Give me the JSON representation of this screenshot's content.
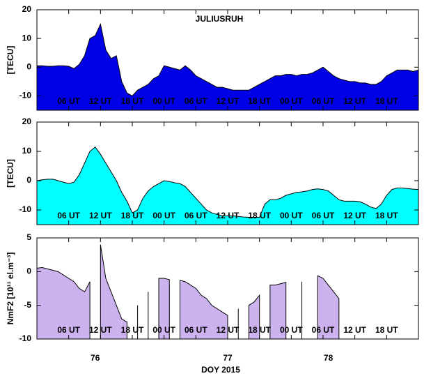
{
  "chart_data": [
    {
      "type": "area",
      "title": "JULIUSRUH",
      "ylabel": "[TECU]",
      "color": "#0000e6",
      "x": [
        0,
        1,
        2,
        3,
        4,
        5,
        6,
        7,
        8,
        9,
        10,
        11,
        12,
        13,
        14,
        15,
        16,
        17,
        18,
        19,
        20,
        21,
        22,
        23,
        24,
        25,
        26,
        27,
        28,
        29,
        30,
        31,
        32,
        33,
        34,
        35,
        36,
        37,
        38,
        39,
        40,
        41,
        42,
        43,
        44,
        45,
        46,
        47,
        48,
        49,
        50,
        51,
        52,
        53,
        54,
        55,
        56,
        57,
        58,
        59,
        60,
        61,
        62,
        63,
        64,
        65,
        66,
        67,
        68,
        69,
        70,
        71,
        72
      ],
      "values": [
        0.5,
        0.5,
        0.3,
        0.3,
        0.5,
        0.5,
        0.3,
        -0.5,
        1,
        4,
        10,
        11,
        15,
        6,
        3,
        4,
        -5,
        -9,
        -10,
        -8,
        -7,
        -6,
        -4,
        -3,
        0.5,
        0,
        -0.5,
        -1,
        0.5,
        -1,
        -3,
        -4,
        -5,
        -6,
        -7,
        -7,
        -7.5,
        -8,
        -8,
        -8,
        -8,
        -7,
        -6,
        -5,
        -4,
        -3,
        -3,
        -2.5,
        -2.5,
        -3,
        -2.5,
        -2.5,
        -2,
        -1,
        0,
        -1.5,
        -3,
        -4,
        -4.5,
        -5,
        -5,
        -5.5,
        -5.5,
        -6,
        -6,
        -5,
        -3,
        -2,
        -1,
        -1,
        -1,
        -1.5,
        -1
      ],
      "xlim": [
        0,
        72
      ],
      "ylim": [
        -15,
        20
      ],
      "yticks": [
        -10,
        0,
        10,
        20
      ],
      "xticks": [
        {
          "value": 6,
          "label": "06 UT"
        },
        {
          "value": 12,
          "label": "12 UT"
        },
        {
          "value": 18,
          "label": "18 UT"
        },
        {
          "value": 24,
          "label": "00 UT"
        },
        {
          "value": 30,
          "label": "06 UT"
        },
        {
          "value": 36,
          "label": "12 UT"
        },
        {
          "value": 42,
          "label": "18 UT"
        },
        {
          "value": 48,
          "label": "00 UT"
        },
        {
          "value": 54,
          "label": "06 UT"
        },
        {
          "value": 60,
          "label": "12 UT"
        },
        {
          "value": 66,
          "label": "18 UT"
        }
      ]
    },
    {
      "type": "area",
      "ylabel": "[TECU]",
      "color": "#00ffff",
      "x": [
        0,
        1,
        2,
        3,
        4,
        5,
        6,
        7,
        8,
        9,
        10,
        11,
        12,
        13,
        14,
        15,
        16,
        17,
        18,
        19,
        20,
        21,
        22,
        23,
        24,
        25,
        26,
        27,
        28,
        29,
        30,
        31,
        32,
        33,
        34,
        35,
        36,
        37,
        38,
        39,
        40,
        41,
        42,
        43,
        44,
        45,
        46,
        47,
        48,
        49,
        50,
        51,
        52,
        53,
        54,
        55,
        56,
        57,
        58,
        59,
        60,
        61,
        62,
        63,
        64,
        65,
        66,
        67,
        68,
        69,
        70,
        71,
        72
      ],
      "values": [
        0,
        0.3,
        0.5,
        0.5,
        0,
        -0.5,
        -1,
        -0.5,
        2,
        6,
        10,
        11.5,
        9,
        6,
        3,
        0,
        -4,
        -7,
        -11,
        -10,
        -6,
        -3.5,
        -2,
        -1,
        0,
        -0.3,
        -0.7,
        -1,
        -2,
        -4,
        -6,
        -8,
        -10,
        -11,
        -11.5,
        -12,
        -12,
        -12,
        -12.2,
        -12.4,
        -12.5,
        -12.5,
        -12.5,
        -8,
        -6.5,
        -6.5,
        -6,
        -5,
        -4.5,
        -4,
        -3.8,
        -3.5,
        -3,
        -2.8,
        -3,
        -3.5,
        -5,
        -6.5,
        -7,
        -7,
        -7,
        -7.2,
        -8,
        -9,
        -9.5,
        -8,
        -5,
        -3,
        -2.5,
        -2.5,
        -2.7,
        -2.9,
        -3
      ],
      "xlim": [
        0,
        72
      ],
      "ylim": [
        -15,
        20
      ],
      "yticks": [
        -10,
        0,
        10,
        20
      ],
      "xticks": [
        {
          "value": 6,
          "label": "06 UT"
        },
        {
          "value": 12,
          "label": "12 UT"
        },
        {
          "value": 18,
          "label": "18 UT"
        },
        {
          "value": 24,
          "label": "00 UT"
        },
        {
          "value": 30,
          "label": "06 UT"
        },
        {
          "value": 36,
          "label": "12 UT"
        },
        {
          "value": 42,
          "label": "18 UT"
        },
        {
          "value": 48,
          "label": "00 UT"
        },
        {
          "value": 54,
          "label": "06 UT"
        },
        {
          "value": 60,
          "label": "12 UT"
        },
        {
          "value": 66,
          "label": "18 UT"
        }
      ]
    },
    {
      "type": "area",
      "ylabel": "NmF2 [10¹¹ el.m⁻³]",
      "xlabel": "DOY 2015",
      "color": "#cdb2f0",
      "x": [
        0,
        1,
        2,
        3,
        4,
        5,
        6,
        7,
        8,
        9,
        10,
        11,
        12,
        13,
        14,
        15,
        16,
        17,
        18,
        19,
        20,
        21,
        22,
        23,
        24,
        25,
        26,
        27,
        28,
        29,
        30,
        31,
        32,
        33,
        34,
        35,
        36,
        37,
        38,
        39,
        40,
        41,
        42,
        43,
        44,
        45,
        46,
        47,
        48,
        49,
        50,
        51,
        52,
        53,
        54,
        55,
        56,
        57,
        58,
        59,
        60,
        61,
        62,
        63,
        64,
        65,
        66,
        67,
        68,
        69,
        70,
        71,
        72
      ],
      "values": [
        0.5,
        0.6,
        0.4,
        0.2,
        0,
        -0.5,
        -1,
        -1.5,
        -2.5,
        -3,
        -1.5,
        null,
        4,
        -1,
        -3,
        -5,
        -7,
        -7.5,
        null,
        -5,
        null,
        -3,
        null,
        -1,
        -1,
        -1.2,
        null,
        -1.3,
        -1.5,
        -2,
        -2.5,
        -3.5,
        -4,
        -5,
        -5.5,
        -6,
        -6.5,
        null,
        -5.5,
        null,
        -5,
        -4.5,
        -3.5,
        null,
        -2,
        -2,
        -1.8,
        -1.6,
        null,
        null,
        -1.5,
        null,
        null,
        -0.6,
        -1,
        -2,
        -3,
        -4,
        null,
        null,
        null,
        null,
        null,
        null,
        null,
        null,
        null,
        null,
        null,
        null,
        null,
        null,
        null
      ],
      "xlim": [
        0,
        72
      ],
      "ylim": [
        -10,
        5
      ],
      "yticks": [
        -10,
        -5,
        0,
        5
      ],
      "xticks": [
        {
          "value": 6,
          "label": "06 UT"
        },
        {
          "value": 12,
          "label": "12 UT"
        },
        {
          "value": 18,
          "label": "18 UT"
        },
        {
          "value": 24,
          "label": "00 UT"
        },
        {
          "value": 30,
          "label": "06 UT"
        },
        {
          "value": 36,
          "label": "12 UT"
        },
        {
          "value": 42,
          "label": "18 UT"
        },
        {
          "value": 48,
          "label": "00 UT"
        },
        {
          "value": 54,
          "label": "06 UT"
        },
        {
          "value": 60,
          "label": "12 UT"
        },
        {
          "value": 66,
          "label": "18 UT"
        }
      ],
      "day_labels": [
        {
          "value": 11,
          "label": "76"
        },
        {
          "value": 36,
          "label": "77"
        },
        {
          "value": 55,
          "label": "78"
        }
      ]
    }
  ]
}
